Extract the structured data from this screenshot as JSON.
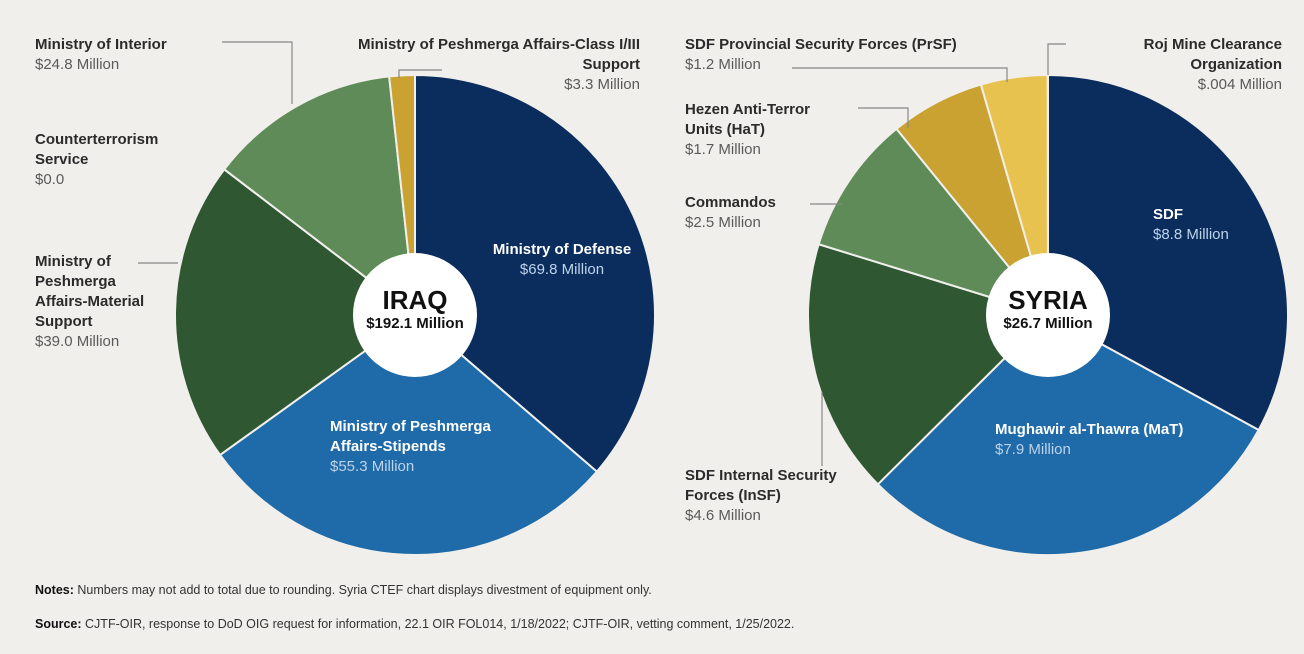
{
  "chart_data": [
    {
      "type": "pie",
      "title": "IRAQ",
      "total": 192.1,
      "total_label": "$192.1 Million",
      "categories": [
        "Ministry of Defense",
        "Ministry of Peshmerga Affairs-Stipends",
        "Ministry of Peshmerga Affairs-Material Support",
        "Counterterrorism Service",
        "Ministry of Interior",
        "Ministry of Peshmerga Affairs-Class I/III Support"
      ],
      "values": [
        69.8,
        55.3,
        39.0,
        0.0,
        24.8,
        3.3
      ],
      "value_labels": [
        "$69.8 Million",
        "$55.3 Million",
        "$39.0 Million",
        "$0.0",
        "$24.8 Million",
        "$3.3 Million"
      ],
      "colors": [
        "#0b2d5e",
        "#1f6aa8",
        "#2f5732",
        "#4f7d4c",
        "#5e8b58",
        "#c9a231"
      ]
    },
    {
      "type": "pie",
      "title": "SYRIA",
      "total": 26.7,
      "total_label": "$26.7 Million",
      "categories": [
        "SDF",
        "Mughawir al-Thawra (MaT)",
        "SDF Internal Security Forces (InSF)",
        "Commandos",
        "Hezen Anti-Terror Units (HaT)",
        "SDF Provincial Security Forces (PrSF)",
        "Roj Mine Clearance Organization"
      ],
      "values": [
        8.8,
        7.9,
        4.6,
        2.5,
        1.7,
        1.2,
        0.004
      ],
      "value_labels": [
        "$8.8 Million",
        "$7.9 Million",
        "$4.6 Million",
        "$2.5 Million",
        "$1.7 Million",
        "$1.2 Million",
        "$.004 Million"
      ],
      "colors": [
        "#0b2d5e",
        "#1f6aa8",
        "#2f5732",
        "#5e8b58",
        "#c9a231",
        "#e8c24e",
        "#e8c24e"
      ]
    }
  ],
  "notes": {
    "label": "Notes:",
    "text": "Numbers may not add to total due to rounding.  Syria CTEF chart displays divestment of equipment only."
  },
  "source": {
    "label": "Source:",
    "text": "CJTF-OIR, response to DoD OIG request for information, 22.1 OIR FOL014, 1/18/2022; CJTF-OIR, vetting comment, 1/25/2022."
  }
}
